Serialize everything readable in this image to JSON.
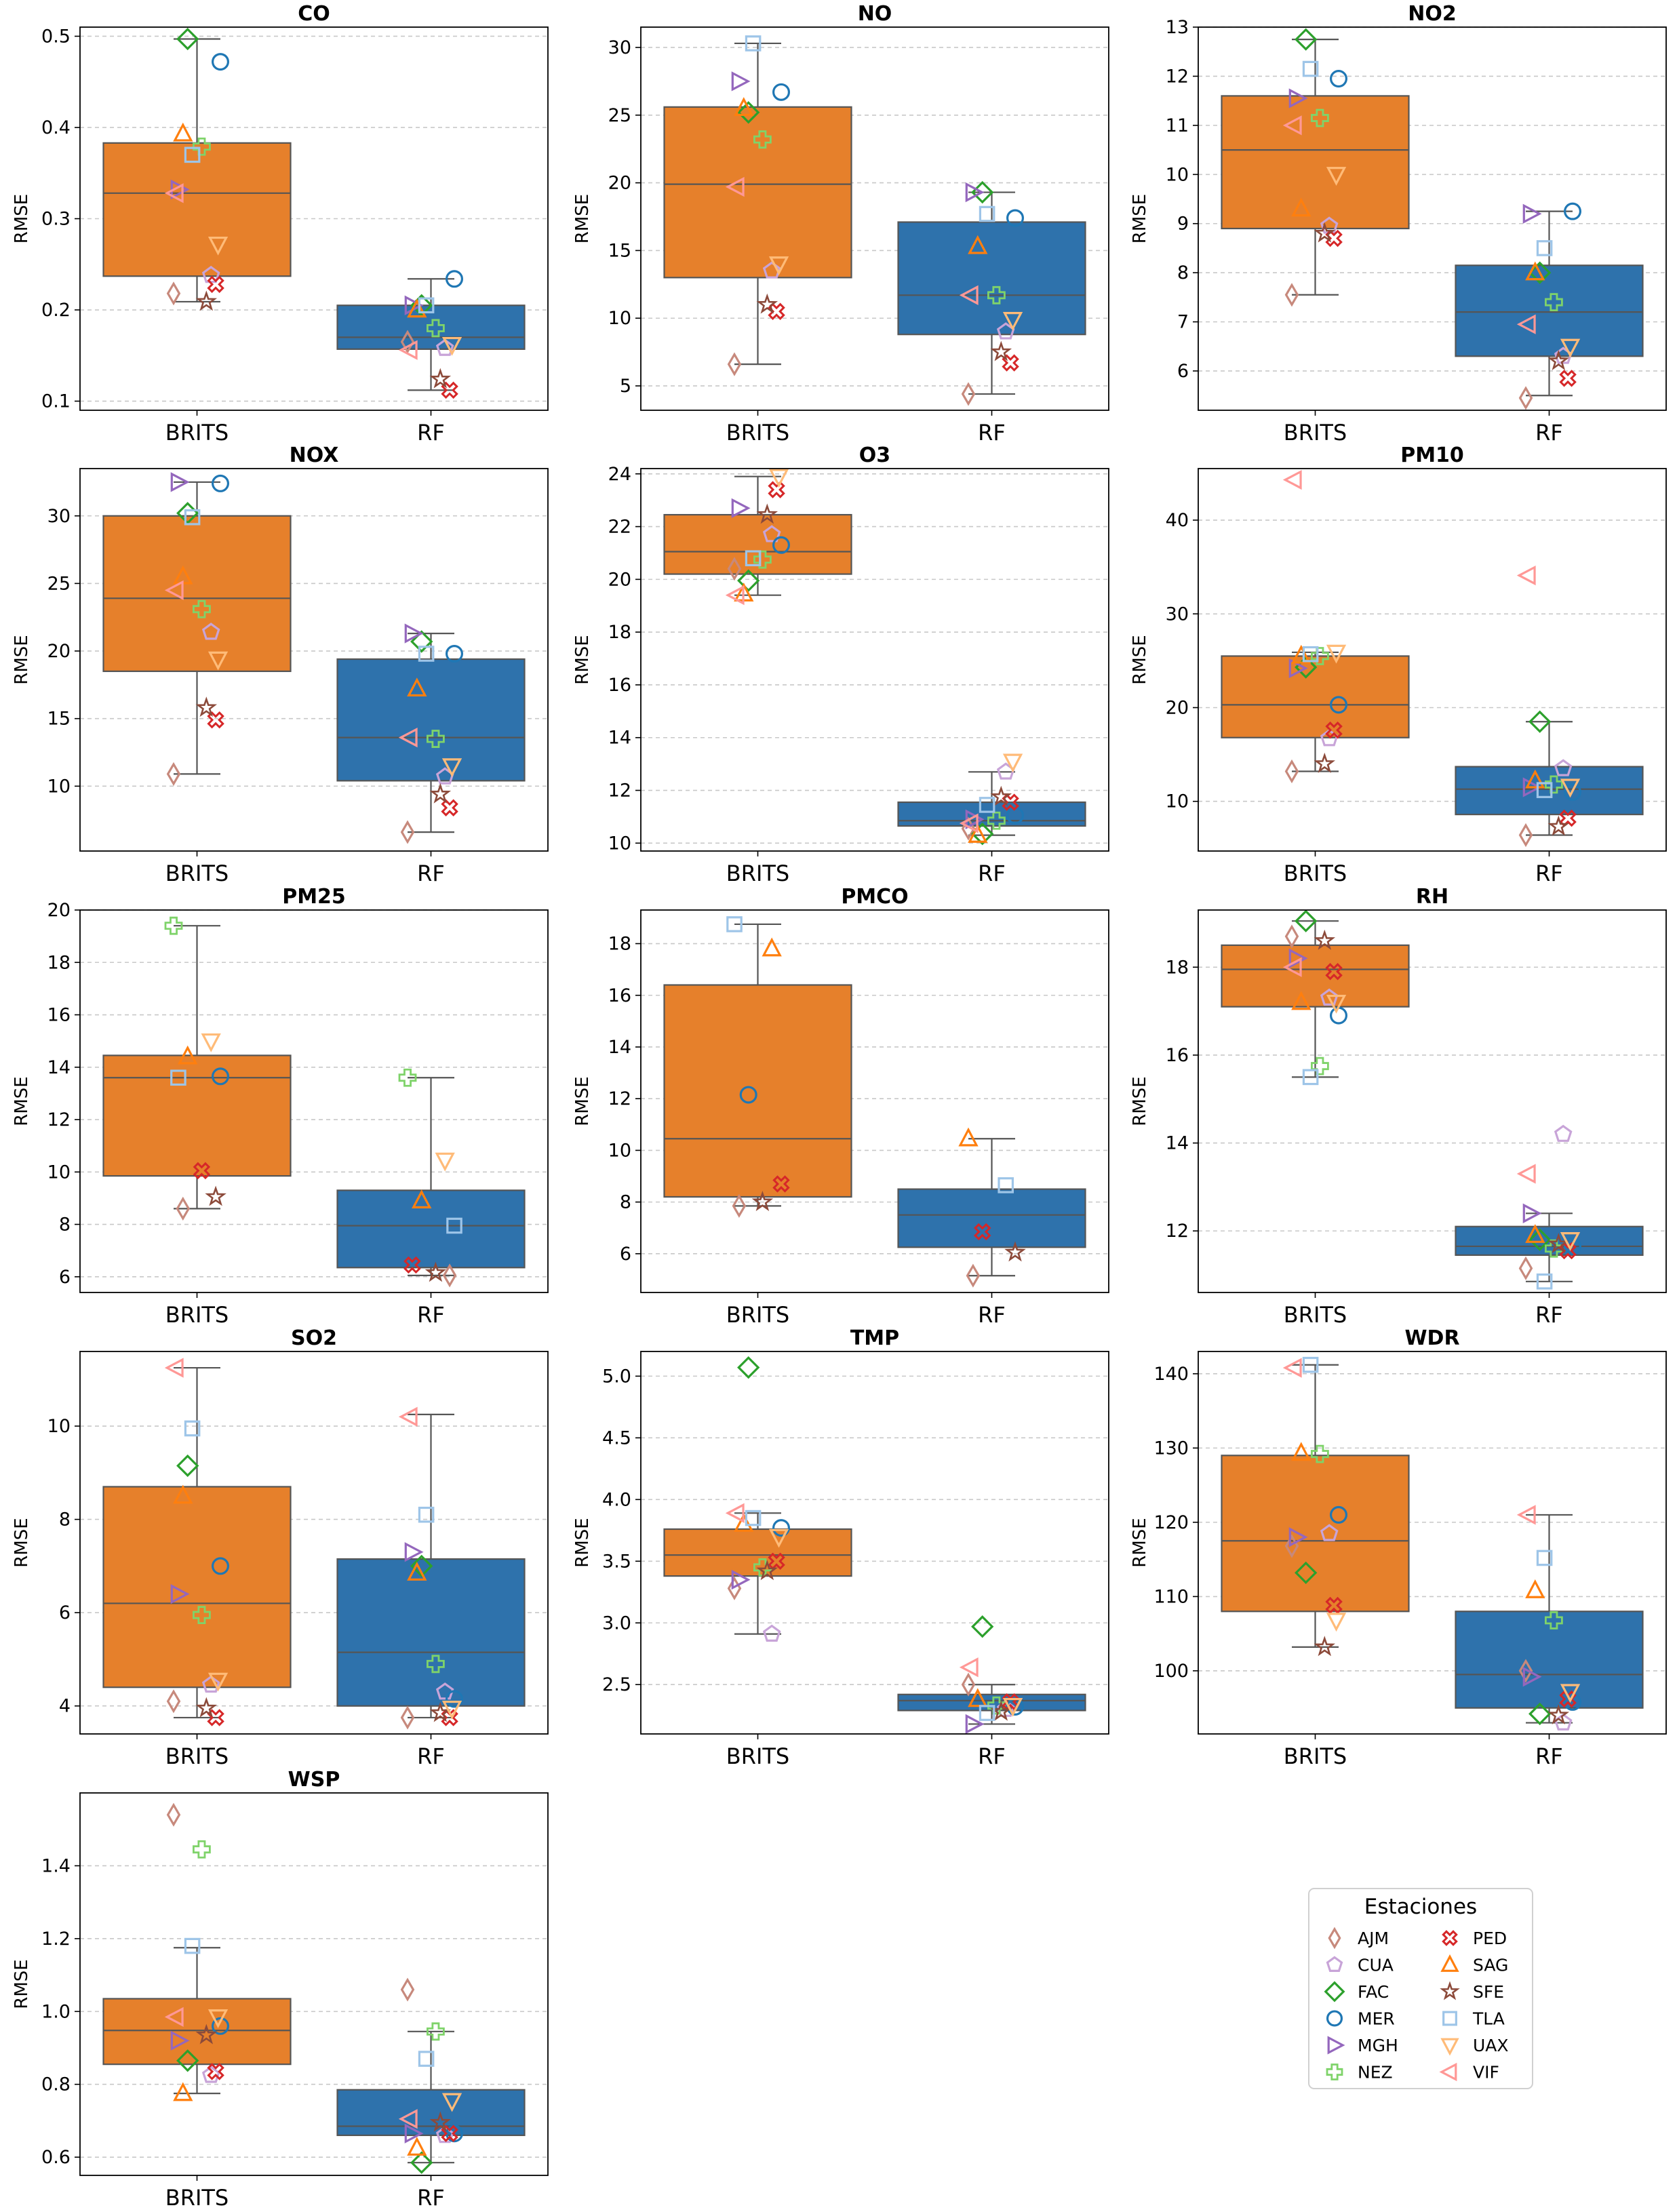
{
  "chart_data": {
    "type": "box",
    "ylabel": "RMSE",
    "categories": [
      "BRITS",
      "RF"
    ],
    "colors": {
      "BRITS": "#e6802b",
      "RF": "#2e72ac"
    },
    "legend": {
      "title": "Estaciones",
      "placement": "lower-right",
      "stations": [
        {
          "name": "AJM",
          "marker": "thin-diamond",
          "color": "#c7897c"
        },
        {
          "name": "CUA",
          "marker": "pentagon",
          "color": "#c8a4d8"
        },
        {
          "name": "FAC",
          "marker": "diamond",
          "color": "#2ca02c"
        },
        {
          "name": "MER",
          "marker": "circle",
          "color": "#1f77b4"
        },
        {
          "name": "MGH",
          "marker": "triangle-right",
          "color": "#9467bd"
        },
        {
          "name": "NEZ",
          "marker": "plus",
          "color": "#7fd36a"
        },
        {
          "name": "PED",
          "marker": "x-filled",
          "color": "#d62728"
        },
        {
          "name": "SAG",
          "marker": "triangle-up",
          "color": "#ff7f0e"
        },
        {
          "name": "SFE",
          "marker": "star",
          "color": "#8c4a3a"
        },
        {
          "name": "TLA",
          "marker": "square",
          "color": "#9ec5e8"
        },
        {
          "name": "UAX",
          "marker": "triangle-down",
          "color": "#ffbb78"
        },
        {
          "name": "VIF",
          "marker": "triangle-left",
          "color": "#ff9896"
        }
      ]
    },
    "panels": [
      {
        "title": "CO",
        "ylim": [
          0.09,
          0.51
        ],
        "yticks": [
          "0.1",
          "0.2",
          "0.3",
          "0.4",
          "0.5"
        ],
        "boxes": {
          "BRITS": {
            "q1": 0.237,
            "median": 0.328,
            "q3": 0.383,
            "low": 0.209,
            "high": 0.497
          },
          "RF": {
            "q1": 0.157,
            "median": 0.17,
            "q3": 0.205,
            "low": 0.112,
            "high": 0.234
          }
        },
        "points": {
          "BRITS": {
            "AJM": 0.218,
            "CUA": 0.238,
            "FAC": 0.497,
            "MER": 0.472,
            "MGH": 0.332,
            "NEZ": 0.379,
            "PED": 0.228,
            "SAG": 0.393,
            "SFE": 0.209,
            "TLA": 0.37,
            "UAX": 0.272,
            "VIF": 0.328
          },
          "RF": {
            "AJM": 0.165,
            "CUA": 0.158,
            "FAC": 0.205,
            "MER": 0.234,
            "MGH": 0.205,
            "NEZ": 0.18,
            "PED": 0.112,
            "SAG": 0.2,
            "SFE": 0.124,
            "TLA": 0.205,
            "UAX": 0.162,
            "VIF": 0.156
          }
        }
      },
      {
        "title": "NO",
        "ylim": [
          3.2,
          31.5
        ],
        "yticks": [
          "5",
          "10",
          "15",
          "20",
          "25",
          "30"
        ],
        "boxes": {
          "BRITS": {
            "q1": 13.0,
            "median": 19.9,
            "q3": 25.6,
            "low": 6.6,
            "high": 30.3
          },
          "RF": {
            "q1": 8.8,
            "median": 11.7,
            "q3": 17.1,
            "low": 4.4,
            "high": 19.3
          }
        },
        "points": {
          "BRITS": {
            "AJM": 6.6,
            "CUA": 13.5,
            "FAC": 25.2,
            "MER": 26.7,
            "MGH": 27.5,
            "NEZ": 23.2,
            "PED": 10.5,
            "SAG": 25.5,
            "SFE": 11.0,
            "TLA": 30.3,
            "UAX": 14.0,
            "VIF": 19.7
          },
          "RF": {
            "AJM": 4.4,
            "CUA": 9.0,
            "FAC": 19.3,
            "MER": 17.4,
            "MGH": 19.3,
            "NEZ": 11.7,
            "PED": 6.7,
            "SAG": 15.3,
            "SFE": 7.5,
            "TLA": 17.7,
            "UAX": 9.9,
            "VIF": 11.7
          }
        }
      },
      {
        "title": "NO2",
        "ylim": [
          5.2,
          13.0
        ],
        "yticks": [
          "6",
          "7",
          "8",
          "9",
          "10",
          "11",
          "12",
          "13"
        ],
        "boxes": {
          "BRITS": {
            "q1": 8.9,
            "median": 10.5,
            "q3": 11.6,
            "low": 7.55,
            "high": 12.75
          },
          "RF": {
            "q1": 6.3,
            "median": 7.2,
            "q3": 8.15,
            "low": 5.5,
            "high": 9.25
          }
        },
        "points": {
          "BRITS": {
            "AJM": 7.55,
            "CUA": 8.95,
            "FAC": 12.75,
            "MER": 11.95,
            "MGH": 11.55,
            "NEZ": 11.15,
            "PED": 8.7,
            "SAG": 9.3,
            "SFE": 8.8,
            "TLA": 12.15,
            "UAX": 10.0,
            "VIF": 11.0
          },
          "RF": {
            "AJM": 5.45,
            "CUA": 6.3,
            "FAC": 8.0,
            "MER": 9.25,
            "MGH": 9.2,
            "NEZ": 7.4,
            "PED": 5.85,
            "SAG": 8.0,
            "SFE": 6.2,
            "TLA": 8.5,
            "UAX": 6.5,
            "VIF": 6.95
          }
        }
      },
      {
        "title": "NOX",
        "ylim": [
          5.2,
          33.5
        ],
        "yticks": [
          "10",
          "15",
          "20",
          "25",
          "30"
        ],
        "boxes": {
          "BRITS": {
            "q1": 18.5,
            "median": 23.9,
            "q3": 30.0,
            "low": 10.9,
            "high": 32.5
          },
          "RF": {
            "q1": 10.4,
            "median": 13.6,
            "q3": 19.4,
            "low": 6.6,
            "high": 21.3
          }
        },
        "points": {
          "BRITS": {
            "AJM": 10.9,
            "CUA": 21.4,
            "FAC": 30.2,
            "MER": 32.4,
            "MGH": 32.5,
            "NEZ": 23.1,
            "PED": 14.9,
            "SAG": 25.5,
            "SFE": 15.8,
            "TLA": 29.9,
            "UAX": 19.4,
            "VIF": 24.5
          },
          "RF": {
            "AJM": 6.6,
            "CUA": 10.7,
            "FAC": 20.7,
            "MER": 19.8,
            "MGH": 21.3,
            "NEZ": 13.5,
            "PED": 8.4,
            "SAG": 17.2,
            "SFE": 9.4,
            "TLA": 19.8,
            "UAX": 11.5,
            "VIF": 13.6
          }
        }
      },
      {
        "title": "O3",
        "ylim": [
          9.7,
          24.2
        ],
        "yticks": [
          "10",
          "12",
          "14",
          "16",
          "18",
          "20",
          "22",
          "24"
        ],
        "boxes": {
          "BRITS": {
            "q1": 20.2,
            "median": 21.05,
            "q3": 22.45,
            "low": 19.4,
            "high": 23.9
          },
          "RF": {
            "q1": 10.65,
            "median": 10.85,
            "q3": 11.55,
            "low": 10.3,
            "high": 12.7
          }
        },
        "points": {
          "BRITS": {
            "AJM": 20.4,
            "CUA": 21.7,
            "FAC": 19.95,
            "MER": 21.3,
            "MGH": 22.7,
            "NEZ": 20.75,
            "PED": 23.4,
            "SAG": 19.45,
            "SFE": 22.45,
            "TLA": 20.8,
            "UAX": 23.9,
            "VIF": 19.4
          },
          "RF": {
            "AJM": 10.55,
            "CUA": 12.7,
            "FAC": 10.35,
            "MER": 11.05,
            "MGH": 10.9,
            "NEZ": 10.85,
            "PED": 11.55,
            "SAG": 10.3,
            "SFE": 11.75,
            "TLA": 11.45,
            "UAX": 13.1,
            "VIF": 10.75
          }
        }
      },
      {
        "title": "PM10",
        "ylim": [
          4.7,
          45.5
        ],
        "yticks": [
          "10",
          "20",
          "30",
          "40"
        ],
        "boxes": {
          "BRITS": {
            "q1": 16.8,
            "median": 20.3,
            "q3": 25.5,
            "low": 13.2,
            "high": 25.9
          },
          "RF": {
            "q1": 8.6,
            "median": 11.3,
            "q3": 13.7,
            "low": 6.4,
            "high": 18.5
          }
        },
        "points": {
          "BRITS": {
            "AJM": 13.2,
            "CUA": 16.7,
            "FAC": 24.3,
            "MER": 20.3,
            "MGH": 24.2,
            "NEZ": 25.5,
            "PED": 17.6,
            "SAG": 25.5,
            "SFE": 14.0,
            "TLA": 25.7,
            "UAX": 25.9,
            "VIF": 44.3
          },
          "RF": {
            "AJM": 6.4,
            "CUA": 13.5,
            "FAC": 18.5,
            "MER": 11.0,
            "MGH": 11.5,
            "NEZ": 11.8,
            "PED": 8.2,
            "SAG": 12.2,
            "SFE": 7.3,
            "TLA": 11.2,
            "UAX": 11.6,
            "VIF": 34.1
          }
        }
      },
      {
        "title": "PM25",
        "ylim": [
          5.4,
          20.0
        ],
        "yticks": [
          "6",
          "8",
          "10",
          "12",
          "14",
          "16",
          "18",
          "20"
        ],
        "boxes": {
          "BRITS": {
            "q1": 9.85,
            "median": 13.6,
            "q3": 14.45,
            "low": 8.6,
            "high": 19.4
          },
          "RF": {
            "q1": 6.35,
            "median": 7.95,
            "q3": 9.3,
            "low": 6.05,
            "high": 13.6
          }
        },
        "points": {
          "BRITS": {
            "NEZ": 19.4,
            "UAX": 15.0,
            "SAG": 14.4,
            "MER": 13.65,
            "TLA": 13.6,
            "PED": 10.05,
            "SFE": 9.05,
            "AJM": 8.6
          },
          "RF": {
            "NEZ": 13.6,
            "UAX": 10.45,
            "SAG": 8.9,
            "TLA": 7.95,
            "PED": 6.45,
            "SFE": 6.15,
            "AJM": 6.05
          }
        }
      },
      {
        "title": "PMCO",
        "ylim": [
          4.5,
          19.3
        ],
        "yticks": [
          "6",
          "8",
          "10",
          "12",
          "14",
          "16",
          "18"
        ],
        "boxes": {
          "BRITS": {
            "q1": 8.2,
            "median": 10.45,
            "q3": 16.4,
            "low": 7.85,
            "high": 18.75
          },
          "RF": {
            "q1": 6.25,
            "median": 7.5,
            "q3": 8.5,
            "low": 5.15,
            "high": 10.45
          }
        },
        "points": {
          "BRITS": {
            "TLA": 18.75,
            "SAG": 17.8,
            "MER": 12.15,
            "PED": 8.7,
            "AJM": 7.85,
            "SFE": 8.0
          },
          "RF": {
            "SAG": 10.45,
            "TLA": 8.65,
            "PED": 6.85,
            "SFE": 6.05,
            "AJM": 5.15
          }
        }
      },
      {
        "title": "RH",
        "ylim": [
          10.6,
          19.3
        ],
        "yticks": [
          "12",
          "14",
          "16",
          "18"
        ],
        "boxes": {
          "BRITS": {
            "q1": 17.1,
            "median": 17.95,
            "q3": 18.5,
            "low": 15.5,
            "high": 19.05
          },
          "RF": {
            "q1": 11.45,
            "median": 11.65,
            "q3": 12.1,
            "low": 10.85,
            "high": 12.4
          }
        },
        "points": {
          "BRITS": {
            "AJM": 18.7,
            "CUA": 17.3,
            "FAC": 19.05,
            "MER": 16.9,
            "MGH": 18.2,
            "NEZ": 15.75,
            "PED": 17.9,
            "SAG": 17.2,
            "SFE": 18.6,
            "TLA": 15.5,
            "UAX": 17.2,
            "VIF": 18.0
          },
          "RF": {
            "AJM": 11.15,
            "CUA": 14.2,
            "FAC": 11.8,
            "MER": 11.65,
            "MGH": 12.4,
            "NEZ": 11.6,
            "PED": 11.55,
            "SAG": 11.9,
            "SFE": 11.7,
            "TLA": 10.85,
            "UAX": 11.8,
            "VIF": 13.3
          }
        }
      },
      {
        "title": "SO2",
        "ylim": [
          3.4,
          11.6
        ],
        "yticks": [
          "4",
          "6",
          "8",
          "10"
        ],
        "boxes": {
          "BRITS": {
            "q1": 4.4,
            "median": 6.2,
            "q3": 8.7,
            "low": 3.75,
            "high": 11.25
          },
          "RF": {
            "q1": 4.0,
            "median": 5.15,
            "q3": 7.15,
            "low": 3.75,
            "high": 10.25
          }
        },
        "points": {
          "BRITS": {
            "AJM": 4.1,
            "CUA": 4.45,
            "FAC": 9.15,
            "MER": 7.0,
            "MGH": 6.4,
            "NEZ": 5.95,
            "PED": 3.75,
            "SAG": 8.5,
            "SFE": 3.95,
            "TLA": 9.95,
            "UAX": 4.55,
            "VIF": 11.25
          },
          "RF": {
            "AJM": 3.75,
            "CUA": 4.3,
            "FAC": 7.0,
            "MER": 4.15,
            "MGH": 7.3,
            "NEZ": 4.9,
            "PED": 3.75,
            "SAG": 6.85,
            "SFE": 3.85,
            "TLA": 8.1,
            "UAX": 3.95,
            "VIF": 10.2
          }
        }
      },
      {
        "title": "TMP",
        "ylim": [
          2.1,
          5.2
        ],
        "yticks": [
          "2.5",
          "3.0",
          "3.5",
          "4.0",
          "4.5",
          "5.0"
        ],
        "boxes": {
          "BRITS": {
            "q1": 3.38,
            "median": 3.55,
            "q3": 3.76,
            "low": 2.91,
            "high": 3.89
          },
          "RF": {
            "q1": 2.29,
            "median": 2.37,
            "q3": 2.42,
            "low": 2.18,
            "high": 2.5
          }
        },
        "points": {
          "BRITS": {
            "AJM": 3.28,
            "CUA": 2.91,
            "FAC": 5.07,
            "MER": 3.77,
            "MGH": 3.35,
            "NEZ": 3.45,
            "PED": 3.5,
            "SAG": 3.8,
            "SFE": 3.42,
            "TLA": 3.85,
            "UAX": 3.7,
            "VIF": 3.89
          },
          "RF": {
            "AJM": 2.5,
            "CUA": 2.3,
            "FAC": 2.97,
            "MER": 2.32,
            "MGH": 2.18,
            "NEZ": 2.33,
            "PED": 2.36,
            "SAG": 2.38,
            "SFE": 2.28,
            "TLA": 2.27,
            "UAX": 2.33,
            "VIF": 2.64
          }
        }
      },
      {
        "title": "WDR",
        "ylim": [
          91.5,
          143
        ],
        "yticks": [
          "100",
          "110",
          "120",
          "130",
          "140"
        ],
        "boxes": {
          "BRITS": {
            "q1": 108.0,
            "median": 117.5,
            "q3": 129.0,
            "low": 103.2,
            "high": 141.2
          },
          "RF": {
            "q1": 95.0,
            "median": 99.5,
            "q3": 108.0,
            "low": 93.0,
            "high": 121.0
          }
        },
        "points": {
          "BRITS": {
            "AJM": 116.8,
            "CUA": 118.5,
            "FAC": 113.2,
            "MER": 121.0,
            "MGH": 118.0,
            "NEZ": 129.2,
            "PED": 108.8,
            "SAG": 129.3,
            "SFE": 103.2,
            "TLA": 141.2,
            "UAX": 106.8,
            "VIF": 140.8
          },
          "RF": {
            "AJM": 100.0,
            "CUA": 93.0,
            "FAC": 94.2,
            "MER": 95.8,
            "MGH": 99.2,
            "NEZ": 106.8,
            "PED": 96.2,
            "SAG": 110.8,
            "SFE": 94.0,
            "TLA": 115.2,
            "UAX": 97.2,
            "VIF": 121.0
          }
        }
      },
      {
        "title": "WSP",
        "ylim": [
          0.55,
          1.6
        ],
        "yticks": [
          "0.6",
          "0.8",
          "1.0",
          "1.2",
          "1.4"
        ],
        "boxes": {
          "BRITS": {
            "q1": 0.855,
            "median": 0.948,
            "q3": 1.035,
            "low": 0.775,
            "high": 1.175
          },
          "RF": {
            "q1": 0.66,
            "median": 0.685,
            "q3": 0.785,
            "low": 0.585,
            "high": 0.945
          }
        },
        "points": {
          "BRITS": {
            "AJM": 1.54,
            "CUA": 0.825,
            "FAC": 0.865,
            "MER": 0.96,
            "MGH": 0.92,
            "NEZ": 1.445,
            "PED": 0.835,
            "SAG": 0.775,
            "SFE": 0.935,
            "TLA": 1.18,
            "UAX": 0.985,
            "VIF": 0.985
          },
          "RF": {
            "AJM": 1.06,
            "CUA": 0.66,
            "FAC": 0.585,
            "MER": 0.665,
            "MGH": 0.665,
            "NEZ": 0.945,
            "PED": 0.665,
            "SAG": 0.625,
            "SFE": 0.695,
            "TLA": 0.87,
            "UAX": 0.755,
            "VIF": 0.705
          }
        }
      }
    ]
  }
}
